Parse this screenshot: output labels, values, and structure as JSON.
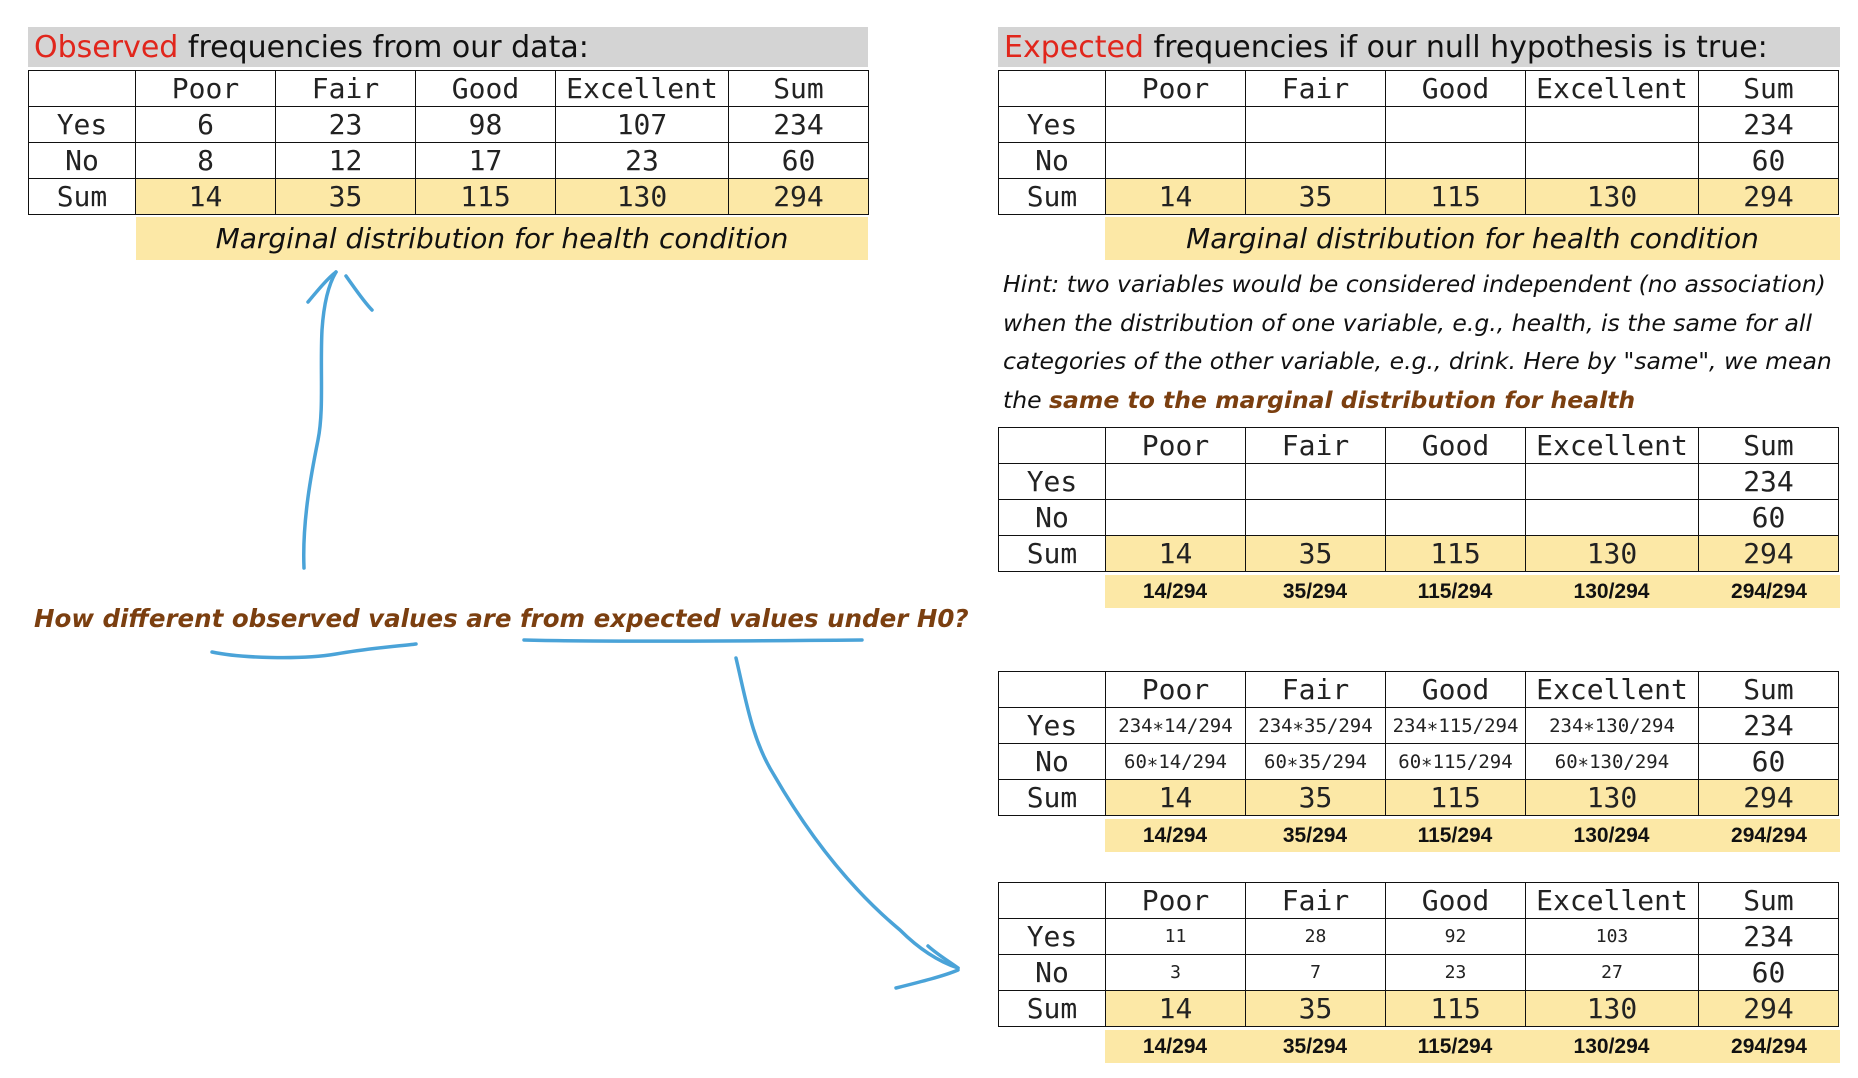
{
  "columns": [
    "Poor",
    "Fair",
    "Good",
    "Excellent",
    "Sum"
  ],
  "rows": [
    "Yes",
    "No",
    "Sum"
  ],
  "observed": {
    "title_highlight": "Observed",
    "title_rest": " frequencies from our data:",
    "yes": [
      "6",
      "23",
      "98",
      "107",
      "234"
    ],
    "no": [
      "8",
      "12",
      "17",
      "23",
      "60"
    ],
    "sum": [
      "14",
      "35",
      "115",
      "130",
      "294"
    ],
    "marginal_label": "Marginal distribution for health condition"
  },
  "expected": {
    "title_highlight": "Expected",
    "title_rest": " frequencies if our null hypothesis is true:",
    "yes": [
      "",
      "",
      "",
      "",
      "234"
    ],
    "no": [
      "",
      "",
      "",
      "",
      "60"
    ],
    "sum": [
      "14",
      "35",
      "115",
      "130",
      "294"
    ],
    "marginal_label": "Marginal distribution for health condition"
  },
  "hint": {
    "text": "Hint: two variables would be considered independent (no association) when the distribution of one variable, e.g., health, is the same for all categories of the other variable, e.g., drink. Here by \"same\", we mean the ",
    "emphasis": "same  to the marginal distribution for health"
  },
  "table3": {
    "yes": [
      "",
      "",
      "",
      "",
      "234"
    ],
    "no": [
      "",
      "",
      "",
      "",
      "60"
    ],
    "sum": [
      "14",
      "35",
      "115",
      "130",
      "294"
    ],
    "fractions": [
      "14/294",
      "35/294",
      "115/294",
      "130/294",
      "294/294"
    ]
  },
  "table4": {
    "yes": [
      "234∗14/294",
      "234∗35/294",
      "234∗115/294",
      "234∗130/294",
      "234"
    ],
    "no": [
      "60∗14/294",
      "60∗35/294",
      "60∗115/294",
      "60∗130/294",
      "60"
    ],
    "sum": [
      "14",
      "35",
      "115",
      "130",
      "294"
    ],
    "fractions": [
      "14/294",
      "35/294",
      "115/294",
      "130/294",
      "294/294"
    ]
  },
  "table5": {
    "yes": [
      "11",
      "28",
      "92",
      "103",
      "234"
    ],
    "no": [
      "3",
      "7",
      "23",
      "27",
      "60"
    ],
    "sum": [
      "14",
      "35",
      "115",
      "130",
      "294"
    ],
    "fractions": [
      "14/294",
      "35/294",
      "115/294",
      "130/294",
      "294/294"
    ]
  },
  "question": "How different observed values are from expected values under H0?",
  "colors": {
    "title_red": "#e1261c",
    "highlight_yellow": "#fce8a6",
    "title_gray": "#d4d4d4",
    "brown_text": "#7b3f10",
    "ink_blue": "#4aa3d8"
  }
}
